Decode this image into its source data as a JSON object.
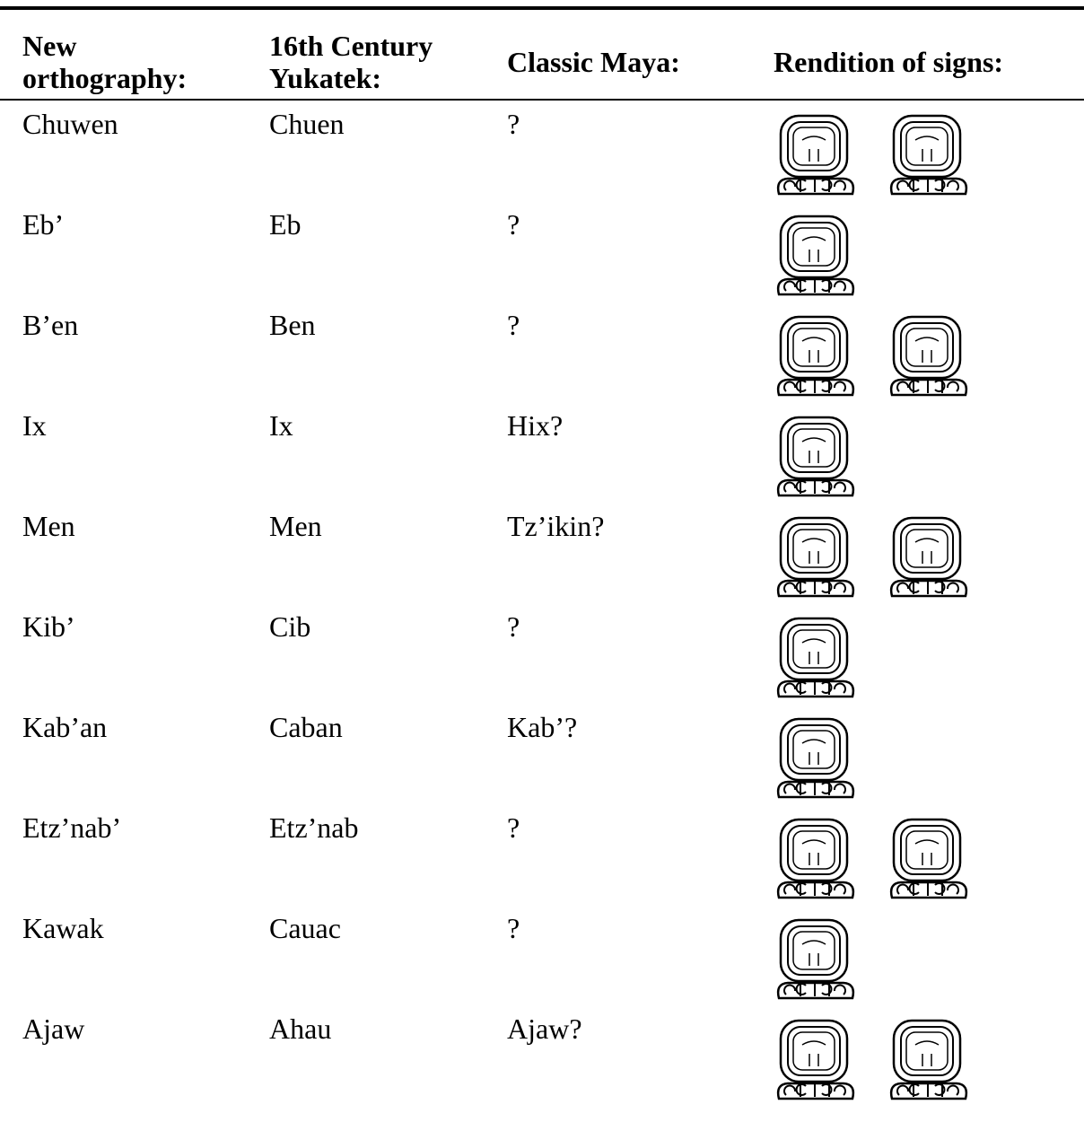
{
  "table": {
    "header": [
      "New orthography:",
      "16th Century Yukatek:",
      "Classic Maya:",
      "Rendition of signs:"
    ],
    "rows": [
      [
        "Chuwen",
        "Chuen",
        "?"
      ],
      [
        "Eb’",
        "Eb",
        "?"
      ],
      [
        "B’en",
        "Ben",
        "?"
      ],
      [
        "Ix",
        "Ix",
        "Hix?"
      ],
      [
        "Men",
        "Men",
        "Tz’ikin?"
      ],
      [
        "Kib’",
        "Cib",
        "?"
      ],
      [
        "Kab’an",
        "Caban",
        "Kab’?"
      ],
      [
        "Etz’nab’",
        "Etz’nab",
        "?"
      ],
      [
        "Kawak",
        "Cauac",
        "?"
      ],
      [
        "Ajaw",
        "Ahau",
        "Ajaw?"
      ]
    ]
  }
}
